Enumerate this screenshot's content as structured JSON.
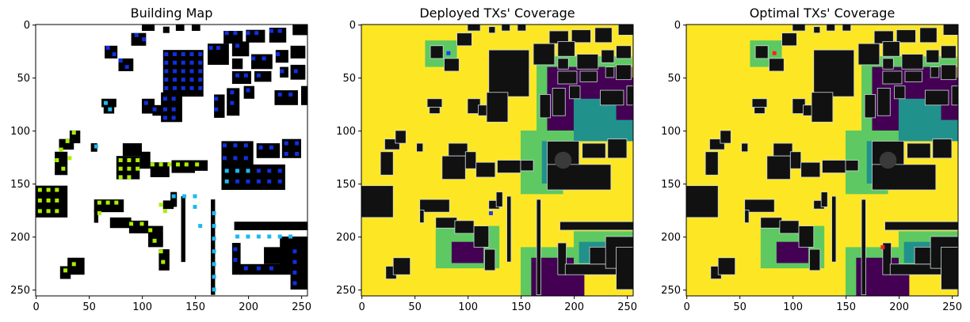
{
  "chart_data": [
    {
      "type": "heatmap",
      "title": "Building Map",
      "xticks": [
        0,
        50,
        100,
        150,
        200,
        250
      ],
      "yticks": [
        0,
        50,
        100,
        150,
        200,
        250
      ],
      "xlim": [
        0,
        256
      ],
      "ylim": [
        256,
        0
      ]
    },
    {
      "type": "heatmap",
      "title": "Deployed TXs' Coverage",
      "xticks": [
        0,
        50,
        100,
        150,
        200,
        250
      ],
      "yticks": [
        0,
        50,
        100,
        150,
        200,
        250
      ],
      "xlim": [
        0,
        256
      ],
      "ylim": [
        256,
        0
      ],
      "transmitters": [
        {
          "x": 82,
          "y": 27,
          "color": "#1e3cff"
        },
        {
          "x": 122,
          "y": 178,
          "color": "#1e3cff"
        }
      ]
    },
    {
      "type": "heatmap",
      "title": "Optimal TXs' Coverage",
      "xticks": [
        0,
        50,
        100,
        150,
        200,
        250
      ],
      "yticks": [
        0,
        50,
        100,
        150,
        200,
        250
      ],
      "xlim": [
        0,
        256
      ],
      "ylim": [
        256,
        0
      ],
      "transmitters": [
        {
          "x": 83,
          "y": 27,
          "color": "#ff2020"
        },
        {
          "x": 185,
          "y": 210,
          "color": "#ff2020"
        }
      ]
    }
  ],
  "colors": {
    "coverage_high": "#fde725",
    "coverage_mid": "#5ec962",
    "coverage_teal": "#21918c",
    "coverage_low": "#440154",
    "building": "#111111",
    "tx_deployed": "#1e3cff",
    "tx_optimal": "#ff2020",
    "marker_blue": "#1030e0",
    "marker_cyan": "#20b8f0",
    "marker_lime": "#a8f000"
  }
}
